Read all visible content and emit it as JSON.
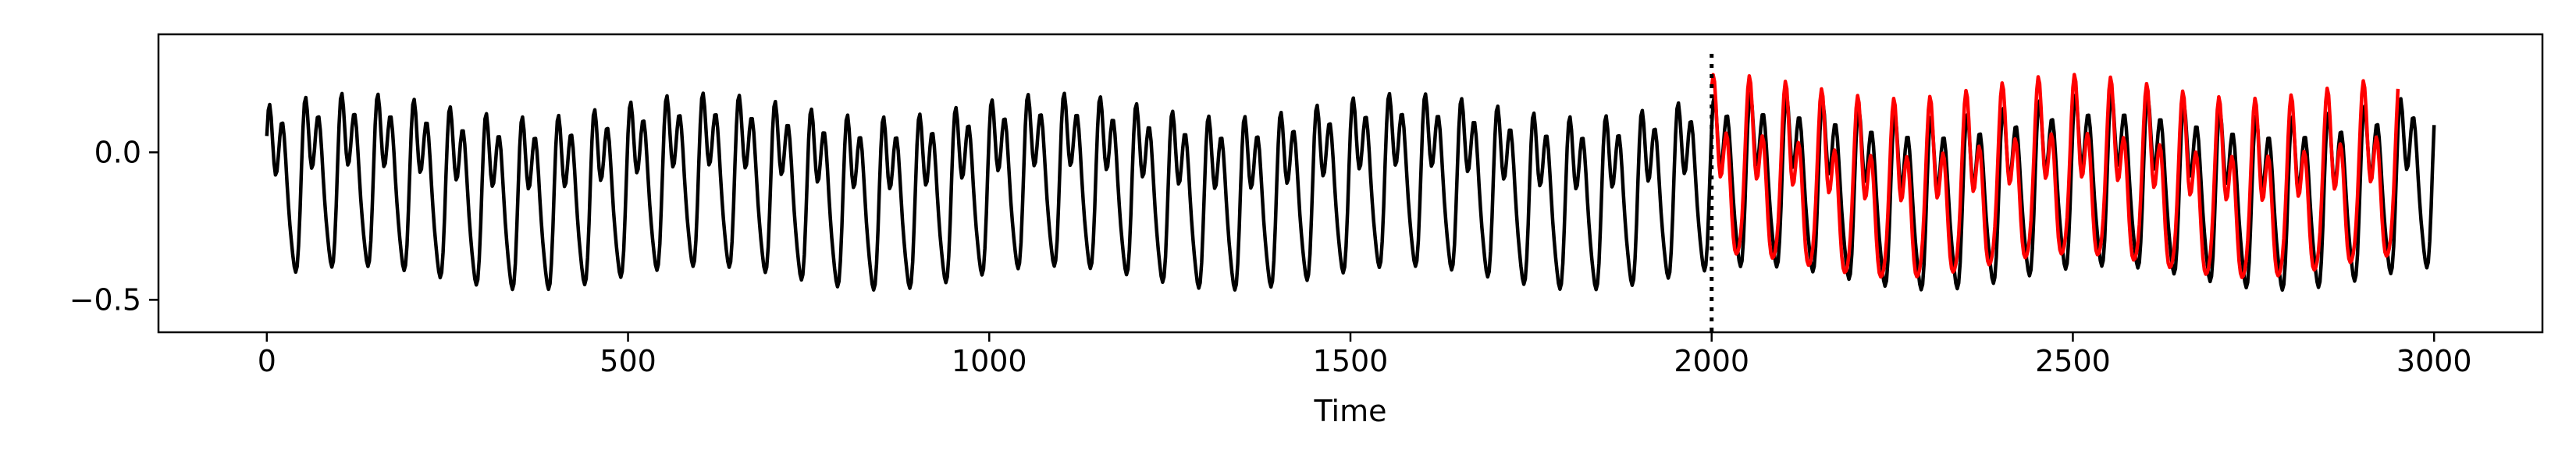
{
  "chart_data": {
    "type": "line",
    "title": "",
    "xlabel": "Time",
    "ylabel": "",
    "xlim": [
      -150,
      3150
    ],
    "ylim": [
      -0.61,
      0.4
    ],
    "x_ticks": [
      0,
      500,
      1000,
      1500,
      2000,
      2500,
      3000
    ],
    "x_tick_labels": [
      "0",
      "500",
      "1000",
      "1500",
      "2000",
      "2500",
      "3000"
    ],
    "y_ticks": [
      0.0,
      -0.5
    ],
    "y_tick_labels": [
      "0.0",
      "−0.5"
    ],
    "grid": false,
    "legend": "none",
    "vline": {
      "x": 2000,
      "style": "dotted",
      "color": "#000000"
    },
    "series": [
      {
        "color": "#000000",
        "x_start": 0,
        "x_end": 3000,
        "approx_period": 50,
        "min": -0.52,
        "max": 0.31
      },
      {
        "color": "#ff0000",
        "x_start": 2000,
        "x_end": 2950,
        "approx_period": 50,
        "min": -0.52,
        "max": 0.31
      }
    ]
  }
}
